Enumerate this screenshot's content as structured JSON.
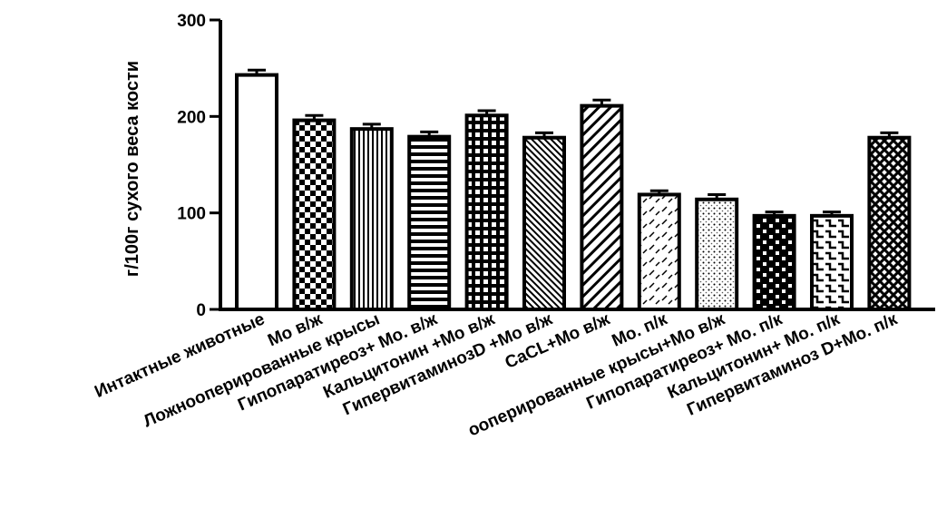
{
  "chart_data": {
    "type": "bar",
    "title": "",
    "xlabel": "",
    "ylabel": "г/100г сухого веса кости",
    "ylim": [
      0,
      300
    ],
    "yticks": [
      0,
      100,
      200,
      300
    ],
    "grid": false,
    "categories": [
      "Интактные животные",
      "Mo в/ж",
      "Ложнооперированные крысы",
      "Гипопаратиреоз+ Mo. в/ж",
      "Кальцитонин +Mo в/ж",
      "ГипервитаминозD +Mo в/ж",
      "CaCL+Mo в/ж",
      "Mo. п/к",
      "ооперированные крысы+Mo в/ж",
      "Гипопаратиреоз+ Mo. п/к",
      "Кальцитонин+ Mo. п/к",
      "Гипервитаминоз D+Mo. п/к"
    ],
    "values": [
      243,
      196,
      187,
      179,
      201,
      178,
      211,
      119,
      114,
      97,
      97,
      178
    ],
    "errors": [
      5,
      5,
      5,
      5,
      5,
      5,
      6,
      4,
      5,
      4,
      4,
      5
    ],
    "patterns": [
      "white",
      "checker",
      "vlines",
      "hlines",
      "grid",
      "diag-thin",
      "diag-wide",
      "dashes",
      "dots",
      "brick-dark",
      "brick-light",
      "lattice"
    ]
  }
}
